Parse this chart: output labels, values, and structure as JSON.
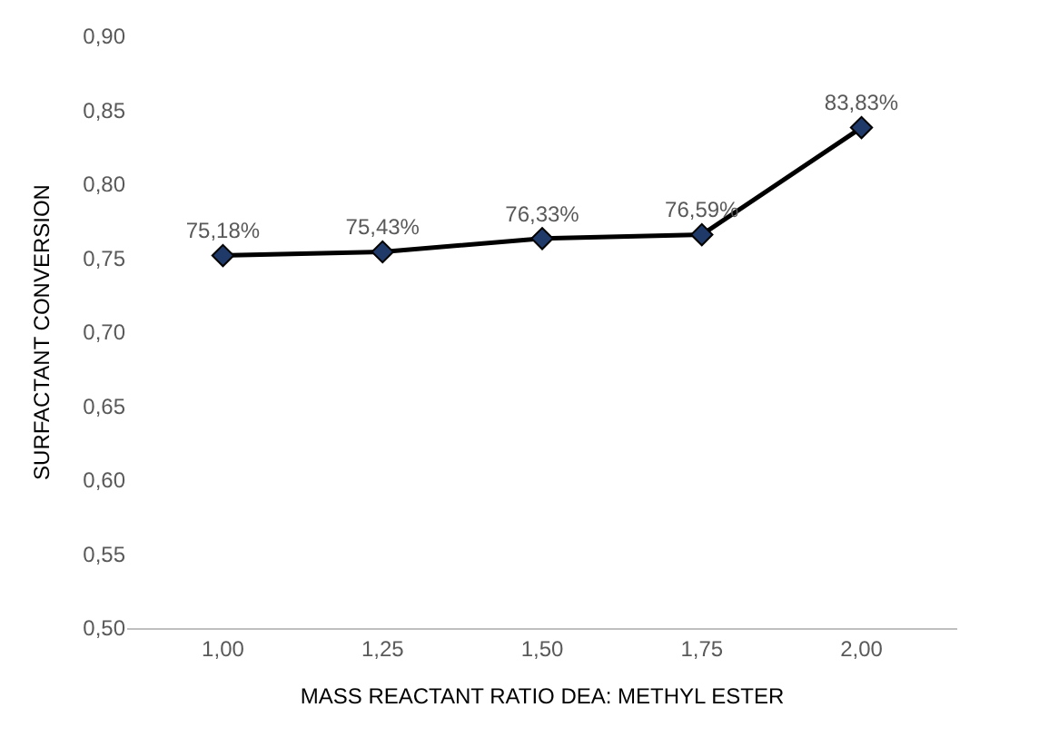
{
  "chart_data": {
    "type": "line",
    "xlabel": "MASS REACTANT RATIO DEA: METHYL ESTER",
    "ylabel": "SURFACTANT CONVERSION",
    "categories": [
      "1,00",
      "1,25",
      "1,50",
      "1,75",
      "2,00"
    ],
    "series": [
      {
        "color": "#000000",
        "values": [
          0.7518,
          0.7543,
          0.7633,
          0.7659,
          0.8383
        ],
        "value_labels": [
          "75,18%",
          "75,43%",
          "76,33%",
          "76,59%",
          "83,83%"
        ]
      }
    ],
    "ylim": [
      0.5,
      0.9
    ],
    "yticks": [
      {
        "value": 0.5,
        "label": "0,50"
      },
      {
        "value": 0.55,
        "label": "0,55"
      },
      {
        "value": 0.6,
        "label": "0,60"
      },
      {
        "value": 0.65,
        "label": "0,65"
      },
      {
        "value": 0.7,
        "label": "0,70"
      },
      {
        "value": 0.75,
        "label": "0,75"
      },
      {
        "value": 0.8,
        "label": "0,80"
      },
      {
        "value": 0.85,
        "label": "0,85"
      },
      {
        "value": 0.9,
        "label": "0,90"
      }
    ],
    "marker": "diamond",
    "line_style": "solid"
  }
}
